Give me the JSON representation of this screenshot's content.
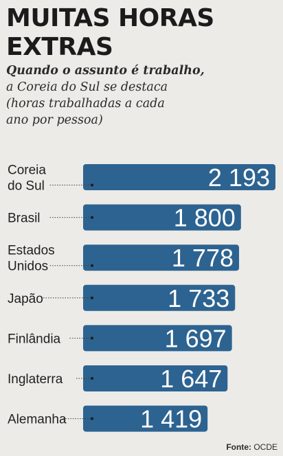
{
  "header": {
    "title_line1": "MUITAS HORAS",
    "title_line2": "EXTRAS",
    "subtitle_bold": "Quando o assunto é trabalho,",
    "subtitle_line2": "a Coreia do Sul se destaca",
    "subtitle_line3": "(horas trabalhadas a cada",
    "subtitle_line4": "ano por pessoa)"
  },
  "chart_data": {
    "type": "bar",
    "orientation": "horizontal",
    "categories": [
      [
        "Coreia",
        "do Sul"
      ],
      [
        "Brasil"
      ],
      [
        "Estados",
        "Unidos"
      ],
      [
        "Japão"
      ],
      [
        "Finlândia"
      ],
      [
        "Inglaterra"
      ],
      [
        "Alemanha"
      ]
    ],
    "values": [
      2193,
      1800,
      1778,
      1733,
      1697,
      1647,
      1419
    ],
    "value_labels": [
      "2 193",
      "1 800",
      "1 778",
      "1 733",
      "1 697",
      "1 647",
      "1 419"
    ],
    "bar_color": "#2d6391",
    "label_color": "#ffffff",
    "grid": false,
    "legend": false
  },
  "footer": {
    "source_label": "Fonte:",
    "source_value": "OCDE"
  }
}
